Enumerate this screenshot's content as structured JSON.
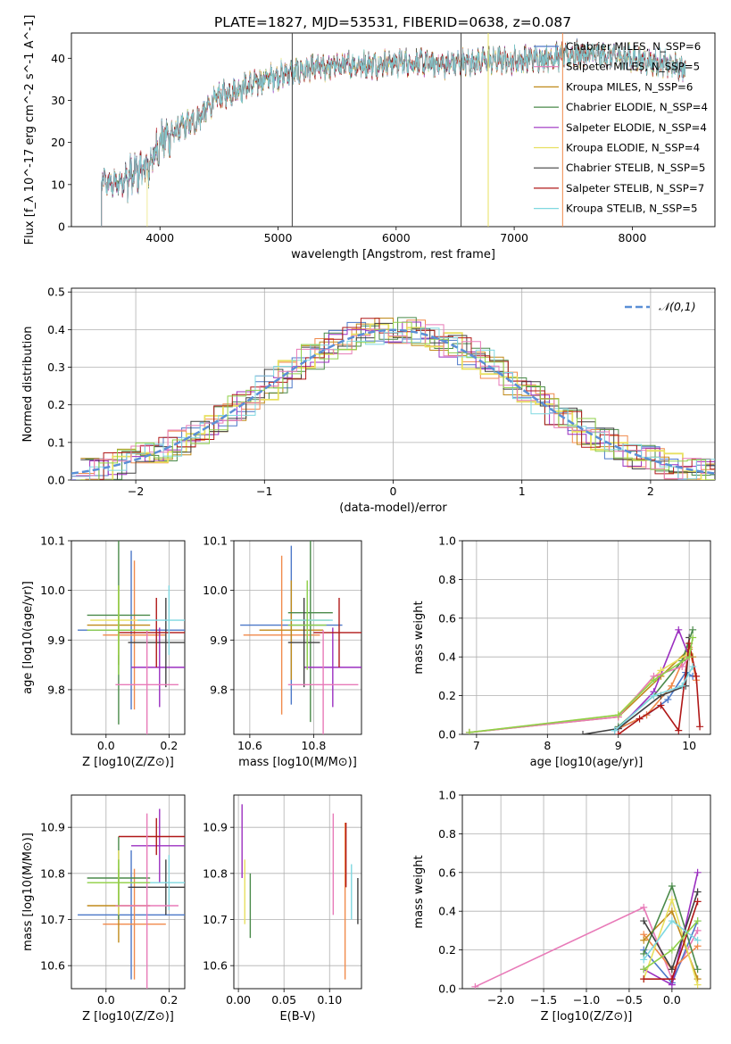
{
  "figure_title": "PLATE=1827, MJD=53531, FIBERID=0638, z=0.087",
  "model_colors": [
    "#4c78c8",
    "#f08a4b",
    "#c08a1a",
    "#4a8a4a",
    "#9b2fc0",
    "#e8e060",
    "#404040",
    "#b01818",
    "#7fd8e0",
    "#e87ab8",
    "#8fd04a"
  ],
  "chart_data": [
    {
      "type": "line",
      "title": "PLATE=1827, MJD=53531, FIBERID=0638, z=0.087",
      "xlabel": "wavelength [Angstrom, rest frame]",
      "ylabel": "Flux [f_λ 10^-17 erg cm^-2 s^-1 A^-1]",
      "xlim": [
        3250,
        8700
      ],
      "ylim": [
        0,
        46
      ],
      "xticks": [
        4000,
        5000,
        6000,
        7000,
        8000
      ],
      "yticks": [
        0,
        10,
        20,
        30,
        40
      ],
      "grid": false,
      "legend_position": "top-right",
      "series": [
        {
          "name": "Chabrier MILES, N_SSP=6",
          "color": "#4c78c8"
        },
        {
          "name": "Salpeter MILES, N_SSP=5",
          "color": "#e87ab8"
        },
        {
          "name": "Kroupa MILES, N_SSP=6",
          "color": "#c08a1a"
        },
        {
          "name": "Chabrier ELODIE, N_SSP=4",
          "color": "#4a8a4a"
        },
        {
          "name": "Salpeter ELODIE, N_SSP=4",
          "color": "#9b2fc0"
        },
        {
          "name": "Kroupa ELODIE, N_SSP=4",
          "color": "#e8e060"
        },
        {
          "name": "Chabrier STELIB, N_SSP=5",
          "color": "#404040"
        },
        {
          "name": "Salpeter STELIB, N_SSP=7",
          "color": "#b01818"
        },
        {
          "name": "Kroupa STELIB, N_SSP=5",
          "color": "#7fd8e0"
        }
      ],
      "continuum": {
        "x": [
          3500,
          3600,
          3700,
          3800,
          3900,
          4000,
          4100,
          4200,
          4300,
          4400,
          4500,
          4600,
          4700,
          4800,
          4900,
          5000,
          5200,
          5400,
          5600,
          5800,
          6000,
          6200,
          6400,
          6600,
          6800,
          7000,
          7200,
          7400,
          7600,
          7800,
          8000,
          8200,
          8450
        ],
        "y": [
          11,
          10,
          11,
          13,
          14,
          20,
          22,
          24,
          25,
          28,
          31,
          32,
          33,
          34,
          35,
          36,
          37,
          38,
          38.5,
          38.5,
          39,
          39,
          38.5,
          39,
          39.5,
          39.5,
          40,
          40.5,
          41,
          40.5,
          40,
          39,
          37.5
        ]
      }
    },
    {
      "type": "bar",
      "xlabel": "(data-model)/error",
      "ylabel": "Normed distribution",
      "xlim": [
        -2.5,
        2.5
      ],
      "ylim": [
        0,
        0.51
      ],
      "xticks": [
        -2,
        -1,
        0,
        1,
        2
      ],
      "yticks": [
        0.0,
        0.1,
        0.2,
        0.3,
        0.4,
        0.5
      ],
      "grid": true,
      "legend_position": "top-right",
      "reference_curve": {
        "name": "𝒩(0,1)",
        "color": "#5a8fd6",
        "mean": 0,
        "sigma": 1
      }
    },
    {
      "type": "scatter",
      "xlabel": "Z [log10(Z/Z⊙)]",
      "ylabel": "age  [log10(age/yr)]",
      "xlim": [
        -0.11,
        0.25
      ],
      "ylim": [
        9.71,
        10.1
      ],
      "xticks": [
        0.0,
        0.2
      ],
      "yticks": [
        9.8,
        9.9,
        10.0,
        10.1
      ],
      "grid": true,
      "errorbars": [
        {
          "x": 0.08,
          "y": 9.92,
          "xerr": 0.17,
          "yerr": 0.16,
          "color": "#4c78c8"
        },
        {
          "x": 0.09,
          "y": 9.91,
          "xerr": 0.1,
          "yerr": 0.15,
          "color": "#f08a4b"
        },
        {
          "x": 0.04,
          "y": 9.93,
          "xerr": 0.1,
          "yerr": 0.08,
          "color": "#c08a1a"
        },
        {
          "x": 0.04,
          "y": 9.95,
          "xerr": 0.1,
          "yerr": 0.22,
          "color": "#4a8a4a"
        },
        {
          "x": 0.17,
          "y": 9.845,
          "xerr": 0.09,
          "yerr": 0.08,
          "color": "#9b2fc0"
        },
        {
          "x": 0.04,
          "y": 9.94,
          "xerr": 0.09,
          "yerr": 0.07,
          "color": "#e8e060"
        },
        {
          "x": 0.19,
          "y": 9.895,
          "xerr": 0.12,
          "yerr": 0.09,
          "color": "#404040"
        },
        {
          "x": 0.16,
          "y": 9.915,
          "xerr": 0.12,
          "yerr": 0.07,
          "color": "#b01818"
        },
        {
          "x": 0.2,
          "y": 9.94,
          "xerr": 0.1,
          "yerr": 0.07,
          "color": "#7fd8e0"
        },
        {
          "x": 0.13,
          "y": 9.81,
          "xerr": 0.1,
          "yerr": 0.11,
          "color": "#e87ab8"
        },
        {
          "x": 0.04,
          "y": 9.92,
          "xerr": 0.1,
          "yerr": 0.09,
          "color": "#8fd04a"
        }
      ]
    },
    {
      "type": "scatter",
      "xlabel": "mass [log10(M/M⊙)]",
      "ylabel": "",
      "xlim": [
        10.55,
        10.95
      ],
      "ylim": [
        9.71,
        10.1
      ],
      "xticks": [
        10.6,
        10.8
      ],
      "yticks": [
        9.8,
        9.9,
        10.0,
        10.1
      ],
      "grid": true,
      "errorbars": [
        {
          "x": 10.73,
          "y": 9.93,
          "xerr": 0.16,
          "yerr": 0.16,
          "color": "#4c78c8"
        },
        {
          "x": 10.7,
          "y": 9.91,
          "xerr": 0.12,
          "yerr": 0.16,
          "color": "#f08a4b"
        },
        {
          "x": 10.73,
          "y": 9.92,
          "xerr": 0.1,
          "yerr": 0.1,
          "color": "#c08a1a"
        },
        {
          "x": 10.79,
          "y": 9.955,
          "xerr": 0.07,
          "yerr": 0.22,
          "color": "#4a8a4a"
        },
        {
          "x": 10.86,
          "y": 9.845,
          "xerr": 0.09,
          "yerr": 0.08,
          "color": "#9b2fc0"
        },
        {
          "x": 10.78,
          "y": 9.94,
          "xerr": 0.07,
          "yerr": 0.08,
          "color": "#e8e060"
        },
        {
          "x": 10.77,
          "y": 9.895,
          "xerr": 0.05,
          "yerr": 0.09,
          "color": "#404040"
        },
        {
          "x": 10.88,
          "y": 9.915,
          "xerr": 0.08,
          "yerr": 0.07,
          "color": "#b01818"
        },
        {
          "x": 10.78,
          "y": 9.94,
          "xerr": 0.08,
          "yerr": 0.07,
          "color": "#7fd8e0"
        },
        {
          "x": 10.83,
          "y": 9.81,
          "xerr": 0.11,
          "yerr": 0.11,
          "color": "#e87ab8"
        },
        {
          "x": 10.78,
          "y": 9.93,
          "xerr": 0.06,
          "yerr": 0.09,
          "color": "#8fd04a"
        }
      ]
    },
    {
      "type": "line",
      "xlabel": "age  [log10(age/yr)]",
      "ylabel": "mass weight",
      "xlim": [
        6.8,
        10.3
      ],
      "ylim": [
        0,
        1.0
      ],
      "xticks": [
        7,
        8,
        9,
        10
      ],
      "yticks": [
        0.0,
        0.2,
        0.4,
        0.6,
        0.8,
        1.0
      ],
      "grid": true,
      "series": [
        {
          "color": "#4c78c8",
          "x": [
            8.95,
            9.4,
            9.7,
            9.95,
            10.05
          ],
          "y": [
            0.02,
            0.1,
            0.18,
            0.32,
            0.3
          ]
        },
        {
          "color": "#f08a4b",
          "x": [
            9.0,
            9.4,
            9.75,
            10.0,
            10.1
          ],
          "y": [
            0.03,
            0.1,
            0.25,
            0.45,
            0.28
          ]
        },
        {
          "color": "#c08a1a",
          "x": [
            6.9,
            9.0,
            9.6,
            10.0,
            10.05
          ],
          "y": [
            0.01,
            0.09,
            0.3,
            0.44,
            0.4
          ]
        },
        {
          "color": "#4a8a4a",
          "x": [
            9.0,
            9.5,
            9.9,
            10.05
          ],
          "y": [
            0.04,
            0.2,
            0.38,
            0.54
          ]
        },
        {
          "color": "#9b2fc0",
          "x": [
            9.0,
            9.5,
            9.85,
            10.0
          ],
          "y": [
            0.03,
            0.22,
            0.54,
            0.4
          ]
        },
        {
          "color": "#e8e060",
          "x": [
            6.9,
            9.0,
            9.6,
            10.0
          ],
          "y": [
            0.01,
            0.1,
            0.33,
            0.42
          ]
        },
        {
          "color": "#404040",
          "x": [
            8.5,
            9.0,
            9.6,
            9.95,
            10.0
          ],
          "y": [
            0.0,
            0.03,
            0.2,
            0.25,
            0.5
          ]
        },
        {
          "color": "#b01818",
          "x": [
            9.0,
            9.3,
            9.6,
            9.85,
            10.0,
            10.1,
            10.15
          ],
          "y": [
            0.0,
            0.08,
            0.15,
            0.02,
            0.47,
            0.3,
            0.04
          ]
        },
        {
          "color": "#7fd8e0",
          "x": [
            8.95,
            9.5,
            9.9,
            10.05
          ],
          "y": [
            0.02,
            0.2,
            0.25,
            0.35
          ]
        },
        {
          "color": "#e87ab8",
          "x": [
            6.9,
            9.0,
            9.5,
            9.9,
            10.0
          ],
          "y": [
            0.01,
            0.09,
            0.3,
            0.35,
            0.4
          ]
        },
        {
          "color": "#8fd04a",
          "x": [
            6.9,
            9.0,
            9.5,
            10.0,
            10.05
          ],
          "y": [
            0.01,
            0.1,
            0.28,
            0.4,
            0.5
          ]
        }
      ]
    },
    {
      "type": "scatter",
      "xlabel": "Z [log10(Z/Z⊙)]",
      "ylabel": "mass [log10(M/M⊙)]",
      "xlim": [
        -0.11,
        0.25
      ],
      "ylim": [
        10.55,
        10.97
      ],
      "xticks": [
        0.0,
        0.2
      ],
      "yticks": [
        10.6,
        10.7,
        10.8,
        10.9
      ],
      "grid": true,
      "errorbars": [
        {
          "x": 0.08,
          "y": 10.71,
          "xerr": 0.17,
          "yerr": 0.14,
          "color": "#4c78c8"
        },
        {
          "x": 0.09,
          "y": 10.69,
          "xerr": 0.1,
          "yerr": 0.12,
          "color": "#f08a4b"
        },
        {
          "x": 0.04,
          "y": 10.73,
          "xerr": 0.1,
          "yerr": 0.08,
          "color": "#c08a1a"
        },
        {
          "x": 0.04,
          "y": 10.79,
          "xerr": 0.1,
          "yerr": 0.09,
          "color": "#4a8a4a"
        },
        {
          "x": 0.17,
          "y": 10.86,
          "xerr": 0.09,
          "yerr": 0.08,
          "color": "#9b2fc0"
        },
        {
          "x": 0.04,
          "y": 10.78,
          "xerr": 0.09,
          "yerr": 0.07,
          "color": "#e8e060"
        },
        {
          "x": 0.19,
          "y": 10.77,
          "xerr": 0.12,
          "yerr": 0.06,
          "color": "#404040"
        },
        {
          "x": 0.16,
          "y": 10.88,
          "xerr": 0.12,
          "yerr": 0.04,
          "color": "#b01818"
        },
        {
          "x": 0.2,
          "y": 10.78,
          "xerr": 0.1,
          "yerr": 0.06,
          "color": "#7fd8e0"
        },
        {
          "x": 0.13,
          "y": 10.73,
          "xerr": 0.1,
          "yerr": 0.2,
          "color": "#e87ab8"
        },
        {
          "x": 0.04,
          "y": 10.78,
          "xerr": 0.1,
          "yerr": 0.05,
          "color": "#8fd04a"
        }
      ]
    },
    {
      "type": "scatter",
      "xlabel": "E(B-V)",
      "ylabel": "",
      "xlim": [
        -0.005,
        0.135
      ],
      "ylim": [
        10.55,
        10.97
      ],
      "xticks": [
        0.0,
        0.05,
        0.1
      ],
      "yticks": [
        10.6,
        10.7,
        10.8,
        10.9
      ],
      "grid": true,
      "errorbars": [
        {
          "x": 0.004,
          "y": 10.87,
          "xerr": 0,
          "yerr": 0.08,
          "color": "#9b2fc0"
        },
        {
          "x": 0.007,
          "y": 10.76,
          "xerr": 0,
          "yerr": 0.07,
          "color": "#e8e060"
        },
        {
          "x": 0.013,
          "y": 10.73,
          "xerr": 0,
          "yerr": 0.07,
          "color": "#4a8a4a"
        },
        {
          "x": 0.104,
          "y": 10.82,
          "xerr": 0,
          "yerr": 0.11,
          "color": "#e87ab8"
        },
        {
          "x": 0.117,
          "y": 10.74,
          "xerr": 0,
          "yerr": 0.17,
          "color": "#f08a4b"
        },
        {
          "x": 0.118,
          "y": 10.84,
          "xerr": 0,
          "yerr": 0.07,
          "color": "#b01818"
        },
        {
          "x": 0.124,
          "y": 10.76,
          "xerr": 0,
          "yerr": 0.06,
          "color": "#7fd8e0"
        },
        {
          "x": 0.131,
          "y": 10.74,
          "xerr": 0,
          "yerr": 0.05,
          "color": "#404040"
        }
      ]
    },
    {
      "type": "line",
      "xlabel": "Z [log10(Z/Z⊙)]",
      "ylabel": "mass weight",
      "xlim": [
        -2.45,
        0.45
      ],
      "ylim": [
        0,
        1.0
      ],
      "xticks": [
        -2.0,
        -1.5,
        -1.0,
        -0.5,
        0.0
      ],
      "yticks": [
        0.0,
        0.2,
        0.4,
        0.6,
        0.8,
        1.0
      ],
      "grid": true,
      "series": [
        {
          "color": "#e87ab8",
          "x": [
            -2.3,
            -0.33,
            0.0,
            0.3
          ],
          "y": [
            0.01,
            0.42,
            0.05,
            0.3
          ]
        },
        {
          "color": "#4c78c8",
          "x": [
            -0.33,
            0.0,
            0.3
          ],
          "y": [
            0.2,
            0.03,
            0.35
          ]
        },
        {
          "color": "#f08a4b",
          "x": [
            -0.33,
            0.0,
            0.3
          ],
          "y": [
            0.28,
            0.1,
            0.22
          ]
        },
        {
          "color": "#c08a1a",
          "x": [
            -0.33,
            0.0,
            0.3
          ],
          "y": [
            0.25,
            0.4,
            0.05
          ]
        },
        {
          "color": "#4a8a4a",
          "x": [
            -0.33,
            0.0,
            0.3
          ],
          "y": [
            0.18,
            0.53,
            0.1
          ]
        },
        {
          "color": "#9b2fc0",
          "x": [
            -0.33,
            0.0,
            0.3
          ],
          "y": [
            0.1,
            0.02,
            0.6
          ]
        },
        {
          "color": "#e8e060",
          "x": [
            -0.33,
            0.0,
            0.3
          ],
          "y": [
            0.05,
            0.46,
            0.02
          ]
        },
        {
          "color": "#404040",
          "x": [
            -0.33,
            0.0,
            0.3
          ],
          "y": [
            0.35,
            0.1,
            0.5
          ]
        },
        {
          "color": "#b01818",
          "x": [
            -0.33,
            0.0,
            0.3
          ],
          "y": [
            0.05,
            0.05,
            0.45
          ]
        },
        {
          "color": "#7fd8e0",
          "x": [
            -0.33,
            0.0,
            0.3
          ],
          "y": [
            0.15,
            0.35,
            0.25
          ]
        },
        {
          "color": "#8fd04a",
          "x": [
            -0.33,
            0.0,
            0.3
          ],
          "y": [
            0.1,
            0.2,
            0.35
          ]
        }
      ]
    }
  ]
}
